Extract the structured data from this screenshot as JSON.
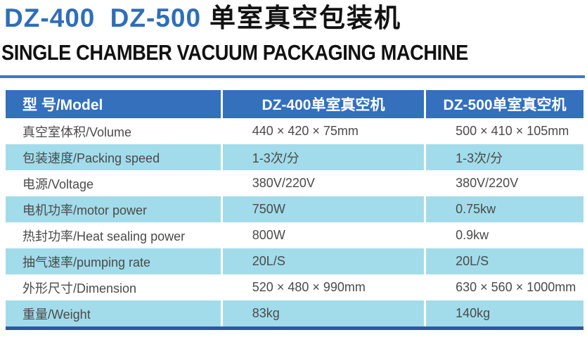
{
  "header": {
    "title_models": "DZ-400 DZ-500",
    "title_cn": "单室真空包装机",
    "subtitle_en": "SINGLE CHAMBER VACUUM PACKAGING MACHINE"
  },
  "colors": {
    "accent_blue_title": "#2f6eb8",
    "table_header_blue": "#3470bc",
    "row_light_blue": "#a2dcea",
    "top_rule_blue": "#3d77c4",
    "bottom_border_blue": "#2b57a8",
    "data_text": "#4a4a4a"
  },
  "table": {
    "columns": [
      "型 号/Model",
      "DZ-400单室真空机",
      "DZ-500单室真空机"
    ],
    "rows": [
      {
        "label": "真空室体积/Volume",
        "dz400": "440 × 420 × 75mm",
        "dz500": "500 × 410 × 105mm"
      },
      {
        "label": "包装速度/Packing speed",
        "dz400": "1-3次/分",
        "dz500": "1-3次/分"
      },
      {
        "label": "电源/Voltage",
        "dz400": "380V/220V",
        "dz500": "380V/220V"
      },
      {
        "label": "电机功率/motor power",
        "dz400": "750W",
        "dz500": "0.75kw"
      },
      {
        "label": "热封功率/Heat sealing power",
        "dz400": "800W",
        "dz500": "0.9kw"
      },
      {
        "label": "抽气速率/pumping rate",
        "dz400": "20L/S",
        "dz500": "20L/S"
      },
      {
        "label": "外形尺寸/Dimension",
        "dz400": "520 × 480 × 990mm",
        "dz500": "630 × 560 × 1000mm"
      },
      {
        "label": "重量/Weight",
        "dz400": "83kg",
        "dz500": "140kg"
      }
    ]
  }
}
